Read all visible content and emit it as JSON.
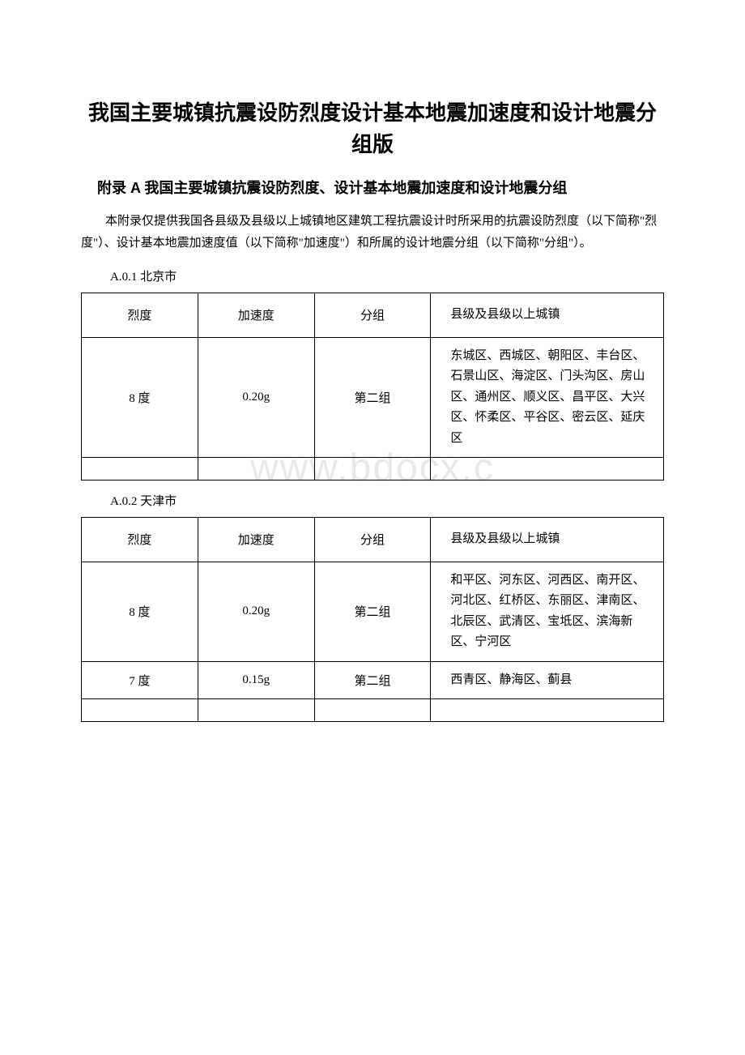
{
  "watermark": "www.bdocx.c",
  "title": "我国主要城镇抗震设防烈度设计基本地震加速度和设计地震分组版",
  "subtitle": "附录 A 我国主要城镇抗震设防烈度、设计基本地震加速度和设计地震分组",
  "intro": "本附录仅提供我国各县级及县级以上城镇地区建筑工程抗震设计时所采用的抗震设防烈度（以下简称\"烈度\"）、设计基本地震加速度值（以下简称\"加速度\"）和所属的设计地震分组（以下简称\"分组\"）。",
  "table_headers": {
    "intensity": "烈度",
    "acceleration": "加速度",
    "group": "分组",
    "towns": "县级及县级以上城镇"
  },
  "sections": [
    {
      "label": "A.0.1 北京市",
      "rows": [
        {
          "intensity": "8 度",
          "acceleration": "0.20g",
          "group": "第二组",
          "towns": "东城区、西城区、朝阳区、丰台区、石景山区、海淀区、门头沟区、房山区、通州区、顺义区、昌平区、大兴区、怀柔区、平谷区、密云区、延庆区"
        }
      ],
      "has_empty_row": true
    },
    {
      "label": "A.0.2 天津市",
      "rows": [
        {
          "intensity": "8 度",
          "acceleration": "0.20g",
          "group": "第二组",
          "towns": "和平区、河东区、河西区、南开区、河北区、红桥区、东丽区、津南区、北辰区、武清区、宝坻区、滨海新区、宁河区"
        },
        {
          "intensity": "7 度",
          "acceleration": "0.15g",
          "group": "第二组",
          "towns": "西青区、静海区、蓟县"
        }
      ],
      "has_empty_row": true
    }
  ]
}
